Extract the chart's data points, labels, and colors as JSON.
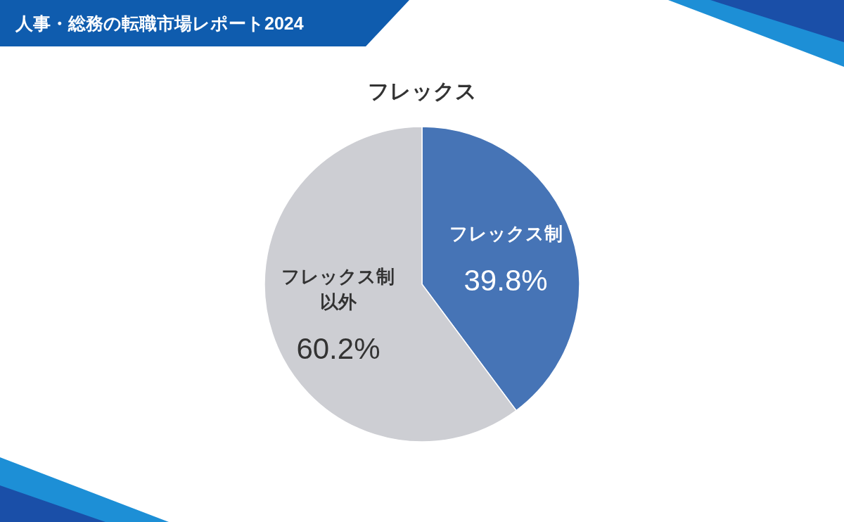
{
  "chart_data": {
    "type": "pie",
    "title": "フレックス",
    "subtitle": "人事・総務の転職市場レポート2024",
    "categories": [
      "フレックス制",
      "フレックス制以外"
    ],
    "values": [
      39.8,
      60.2
    ],
    "value_labels": [
      "39.8%",
      "60.2%"
    ],
    "colors": [
      "#4674b6",
      "#cdced3"
    ],
    "legend": false
  }
}
